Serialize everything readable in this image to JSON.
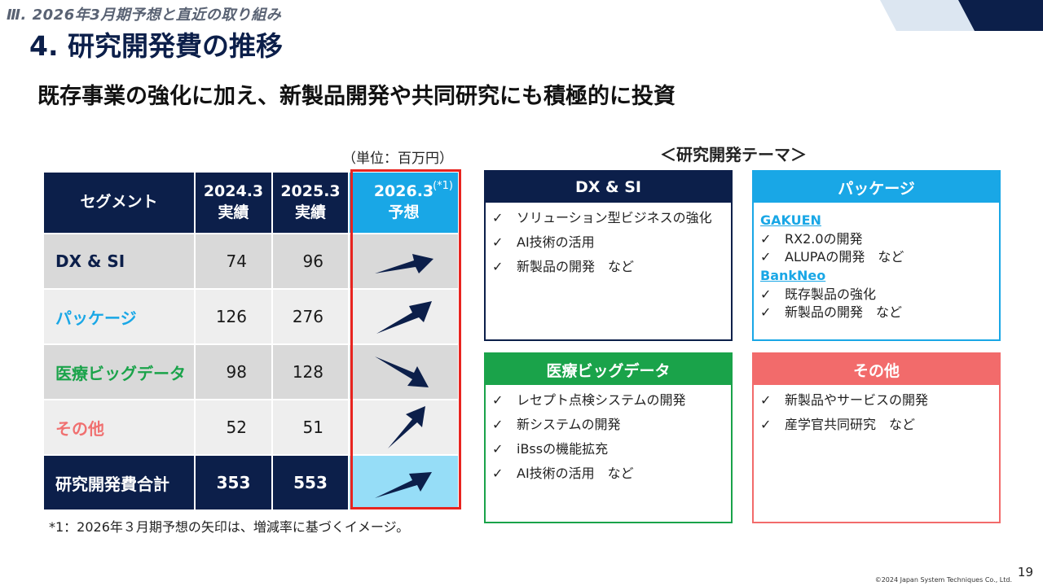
{
  "header": {
    "section": "Ⅲ. 2026年3月期予想と直近の取り組み",
    "title": "4. 研究開発費の推移",
    "lead": "既存事業の強化に加え、新製品開発や共同研究にも積極的に投資"
  },
  "table": {
    "unit_note": "（単位：百万円）",
    "headers": {
      "segment": "セグメント",
      "y2024_line1": "2024.3",
      "y2024_line2": "実績",
      "y2025_line1": "2025.3",
      "y2025_line2": "実績",
      "y2026_line1": "2026.3",
      "y2026_line2": "予想",
      "y2026_note": "(*1)"
    },
    "rows": [
      {
        "segment": "DX & SI",
        "y2024": "74",
        "y2025": "96",
        "color": "#0c1f4a",
        "trend": "flat-up"
      },
      {
        "segment": "パッケージ",
        "y2024": "126",
        "y2025": "276",
        "color": "#19a7e6",
        "trend": "up"
      },
      {
        "segment": "医療ビッグデータ",
        "y2024": "98",
        "y2025": "128",
        "color": "#1aa34a",
        "trend": "down-slight"
      },
      {
        "segment": "その他",
        "y2024": "52",
        "y2025": "51",
        "color": "#f07070",
        "trend": "up-steep"
      }
    ],
    "total": {
      "label": "研究開発費合計",
      "y2024": "353",
      "y2025": "553",
      "trend": "up"
    },
    "footnote": "*1：2026年３月期予想の矢印は、増減率に基づくイメージ。"
  },
  "themes": {
    "title": "＜研究開発テーマ＞",
    "boxes": {
      "dxsi": {
        "title": "DX & SI",
        "color": "#0c1f4a",
        "items": [
          "ソリューション型ビジネスの強化",
          "AI技術の活用",
          "新製品の開発　など"
        ]
      },
      "package": {
        "title": "パッケージ",
        "color": "#19a7e6",
        "gakuen": "GAKUEN",
        "gakuen_items": [
          "RX2.0の開発",
          "ALUPAの開発　など"
        ],
        "bankneo": "BankNeo",
        "bankneo_items": [
          "既存製品の強化",
          "新製品の開発　など"
        ]
      },
      "medical": {
        "title": "医療ビッグデータ",
        "color": "#1aa34a",
        "items": [
          "レセプト点検システムの開発",
          "新システムの開発",
          "iBssの機能拡充",
          "AI技術の活用　など"
        ]
      },
      "other": {
        "title": "その他",
        "color": "#f26b6b",
        "items": [
          "新製品やサービスの開発",
          "産学官共同研究　など"
        ]
      }
    },
    "check_mark": "✓"
  },
  "footer": {
    "page": "19",
    "copyright": "©2024 Japan System Techniques Co., Ltd."
  }
}
